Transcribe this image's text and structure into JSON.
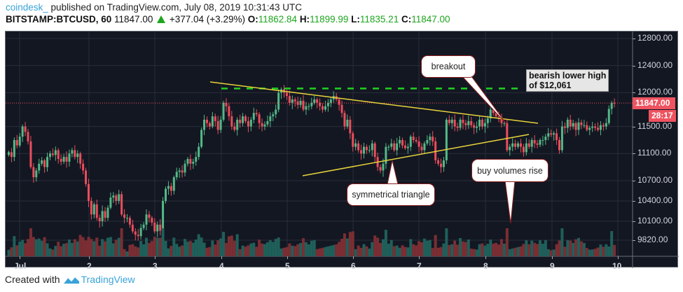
{
  "header": {
    "author": "coindesk_",
    "published_text": " published on TradingView.com, July 08, 2019 10:31:43 UTC",
    "symbol": "BITSTAMP:BTCUSD, 60",
    "last_price": "11847.00",
    "change": "+377.04 (+3.29%)",
    "open_label": "O:",
    "open": "11862.84",
    "high_label": "H:",
    "high": "11899.99",
    "low_label": "L:",
    "low": "11835.21",
    "close_label": "C:",
    "close": "11847.00"
  },
  "price_axis": {
    "ticks": [
      "12800.00",
      "12400.00",
      "12000.00",
      "11500.00",
      "11100.00",
      "10700.00",
      "10400.00",
      "10100.00",
      "9820.00"
    ],
    "current_price_tag": "11847.00",
    "countdown_tag": "28:17"
  },
  "time_axis": {
    "ticks": [
      "Jul",
      "2",
      "3",
      "4",
      "5",
      "6",
      "7",
      "8",
      "9",
      "10"
    ]
  },
  "annotations": {
    "breakout": "breakout",
    "bearish_note_line1": "bearish lower high",
    "bearish_note_line2": "of $12,061",
    "triangle": "symmetrical triangle",
    "volumes": "buy volumes rise"
  },
  "footer": {
    "created_with": "Created with",
    "brand": "TradingView"
  },
  "colors": {
    "background": "#131722",
    "grid": "#2a2e39",
    "up": "#53b987",
    "down": "#eb4d5c",
    "vol_up": "#1f5f5a",
    "vol_down": "#7a2e33",
    "trendline": "#e8d33a",
    "resistance": "#1fd31f",
    "price_line": "#ef5360"
  },
  "chart_data": {
    "type": "candlestick",
    "title": "BITSTAMP:BTCUSD, 60",
    "xlabel": "",
    "ylabel": "",
    "ylim": [
      9820,
      12800
    ],
    "x_ticks": [
      "Jul",
      "2",
      "3",
      "4",
      "5",
      "6",
      "7",
      "8",
      "9",
      "10"
    ],
    "y_ticks": [
      12800,
      12400,
      12000,
      11500,
      11100,
      10700,
      10400,
      10100,
      9820
    ],
    "last": {
      "open": 11862.84,
      "high": 11899.99,
      "low": 11835.21,
      "close": 11847.0,
      "change": 377.04,
      "change_pct": 3.29
    },
    "resistance_level": 12061,
    "triangle_upper": {
      "from": [
        "Jul 3 ~22:00",
        12100
      ],
      "to": [
        "Jul 8 ~18:00",
        11450
      ]
    },
    "triangle_lower": {
      "from": [
        "Jul 5 ~04:00",
        10720
      ],
      "to": [
        "Jul 8 ~15:00",
        11300
      ]
    },
    "candles_approx_close": [
      11120,
      11050,
      11300,
      11220,
      11350,
      11500,
      11420,
      11280,
      10900,
      10750,
      10850,
      10950,
      11000,
      10900,
      11050,
      11100,
      11080,
      11150,
      11020,
      10980,
      11050,
      10980,
      11100,
      11150,
      11050,
      11100,
      10950,
      10850,
      10650,
      10400,
      10200,
      10350,
      10150,
      10100,
      10250,
      10150,
      10300,
      10450,
      10480,
      10400,
      10500,
      10200,
      10150,
      10150,
      10050,
      9950,
      9900,
      9880,
      10000,
      10050,
      10200,
      10150,
      10080,
      9950,
      10050,
      9960,
      10400,
      10580,
      10620,
      10550,
      10750,
      10830,
      10850,
      10820,
      10950,
      11020,
      10950,
      10980,
      11050,
      11200,
      11450,
      11600,
      11550,
      11500,
      11650,
      11580,
      11450,
      11600,
      11850,
      11800,
      11650,
      11500,
      11450,
      11600,
      11550,
      11650,
      11580,
      11500,
      11600,
      11700,
      11680,
      11550,
      11500,
      11530,
      11580,
      11650,
      11680,
      11750,
      12000,
      12050,
      12000,
      11950,
      11850,
      11900,
      11870,
      11820,
      11880,
      11750,
      11800,
      11800,
      11850,
      11900,
      11850,
      11800,
      11750,
      11800,
      11850,
      11900,
      11950,
      11900,
      11820,
      11700,
      11500,
      11600,
      11400,
      11200,
      11250,
      11150,
      11100,
      11200,
      11150,
      11150,
      11250,
      11050,
      10900,
      10850,
      10950,
      11200,
      11200,
      11250,
      11150,
      11250,
      11300,
      11220,
      11180,
      11200,
      11350,
      11300,
      11280,
      11200,
      11150,
      11250,
      11300,
      11350,
      11280,
      11000,
      10950,
      10900,
      11000,
      11600,
      11550,
      11600,
      11500,
      11480,
      11600,
      11550,
      11520,
      11580,
      11520,
      11480,
      11500,
      11600,
      11500,
      11550,
      11620,
      11750,
      11700,
      11650,
      11640,
      11550,
      11550,
      11150,
      11200,
      11250,
      11200,
      11250,
      11200,
      11120,
      11250,
      11200,
      11300,
      11250,
      11230,
      11300,
      11300,
      11350,
      11400,
      11380,
      11400,
      11300,
      11150,
      11500,
      11480,
      11600,
      11500,
      11550,
      11450,
      11560,
      11520,
      11520,
      11450,
      11480,
      11500,
      11480,
      11450,
      11520,
      11500,
      11550,
      11760,
      11850,
      11847
    ]
  }
}
